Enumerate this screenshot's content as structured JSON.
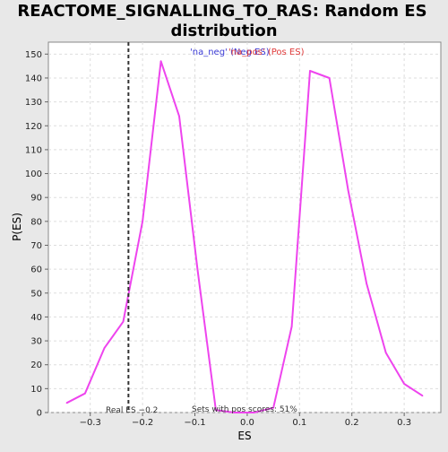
{
  "chart_data": {
    "type": "line",
    "title": "REACTOME_SIGNALLING_TO_RAS: Random ES distribution",
    "title_lines": [
      "REACTOME_SIGNALLING_TO_RAS: Random ES",
      "distribution"
    ],
    "xlabel": "ES",
    "ylabel": "P(ES)",
    "xlim": [
      -0.38,
      0.37
    ],
    "ylim": [
      0,
      155
    ],
    "x_ticks": [
      -0.3,
      -0.2,
      -0.1,
      0.0,
      0.1,
      0.2,
      0.3
    ],
    "x_tick_labels": [
      "−0.3",
      "−0.2",
      "−0.1",
      "0.0",
      "0.1",
      "0.2",
      "0.3"
    ],
    "y_ticks": [
      0,
      10,
      20,
      30,
      40,
      50,
      60,
      70,
      80,
      90,
      100,
      110,
      120,
      130,
      140,
      150
    ],
    "grid": true,
    "legend": {
      "placement": "top-center",
      "entries": [
        "'na_neg' (Neg ES)",
        "'na_pos' (Pos ES)"
      ],
      "colors": [
        "#3b3bd6",
        "#e03b3b"
      ]
    },
    "series": [
      {
        "color": "#ee44ee",
        "x": [
          -0.345,
          -0.31,
          -0.273,
          -0.237,
          -0.2,
          -0.165,
          -0.13,
          -0.095,
          -0.06,
          -0.025,
          0.013,
          0.05,
          0.085,
          0.12,
          0.157,
          0.193,
          0.228,
          0.265,
          0.3,
          0.335
        ],
        "y": [
          4,
          8,
          27,
          38,
          80,
          147,
          124,
          60,
          1,
          0,
          0,
          2,
          36,
          143,
          140,
          93,
          54,
          25,
          12,
          7
        ]
      }
    ],
    "real_es": -0.227,
    "annotations": {
      "real_es_label": "Real ES −0.2",
      "pos_scores_label": "Sets with pos scores: 51%"
    }
  }
}
